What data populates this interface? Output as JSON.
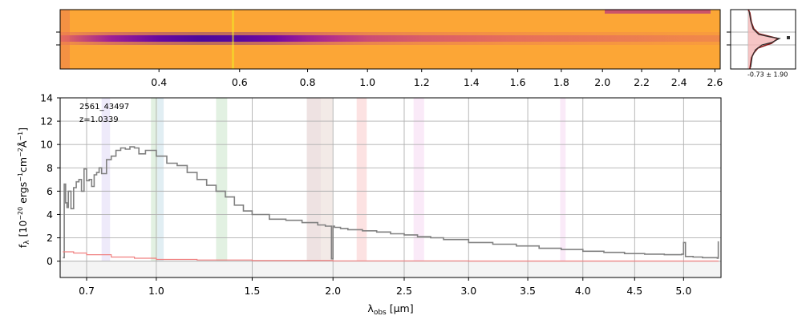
{
  "chart_data": [
    {
      "type": "heatmap",
      "name": "2d-spectrum",
      "colormap": "plasma",
      "xaxis_labels": [
        "0.4",
        "0.6",
        "0.8",
        "1.0",
        "1.2",
        "1.4",
        "1.6",
        "1.8",
        "2.0",
        "2.2",
        "2.4",
        "2.6"
      ],
      "xaxis_values": [
        0.4,
        0.6,
        0.8,
        1.0,
        1.2,
        1.4,
        1.6,
        1.8,
        2.0,
        2.2,
        2.4,
        2.6
      ],
      "xrange": [
        0.21,
        2.63
      ],
      "trace_profile": {
        "x": [
          0.21,
          0.3,
          0.4,
          0.5,
          0.6,
          0.7,
          0.8,
          0.9,
          1.0,
          1.2,
          1.4,
          1.6,
          1.8,
          2.0,
          2.2,
          2.4,
          2.63
        ],
        "intensity": [
          0.35,
          0.7,
          0.9,
          1.0,
          0.95,
          0.85,
          0.7,
          0.6,
          0.5,
          0.42,
          0.38,
          0.33,
          0.3,
          0.27,
          0.24,
          0.2,
          0.18
        ]
      }
    },
    {
      "type": "area",
      "name": "cross-dispersion-profile",
      "annotation": "-0.73 ± 1.90"
    },
    {
      "type": "line",
      "name": "1d-spectrum",
      "title": "",
      "xlabel": "λ_obs [μm]",
      "ylabel": "f_λ [10⁻²⁰ ergs⁻¹cm⁻²Å⁻¹]",
      "xscale": "sqrt",
      "xlim": [
        0.6,
        5.4
      ],
      "ylim": [
        -1.4,
        14
      ],
      "grid": true,
      "xticks": [
        0.7,
        1.0,
        1.5,
        2.0,
        2.5,
        3.0,
        3.5,
        4.0,
        4.5,
        5.0
      ],
      "xtick_labels": [
        "0.7",
        "1.0",
        "1.5",
        "2.0",
        "2.5",
        "3.0",
        "3.5",
        "4.0",
        "4.5",
        "5.0"
      ],
      "yticks": [
        0,
        2,
        4,
        6,
        8,
        10,
        12,
        14
      ],
      "ytick_labels": [
        "0",
        "2",
        "4",
        "6",
        "8",
        "10",
        "12",
        "14"
      ],
      "annotations": [
        "2561_43497",
        "z=1.0339"
      ],
      "series": [
        {
          "role": "flux",
          "color": "#808080",
          "x": [
            0.61,
            0.615,
            0.62,
            0.625,
            0.63,
            0.64,
            0.65,
            0.66,
            0.67,
            0.68,
            0.69,
            0.7,
            0.71,
            0.72,
            0.73,
            0.74,
            0.75,
            0.76,
            0.78,
            0.8,
            0.82,
            0.84,
            0.86,
            0.88,
            0.9,
            0.92,
            0.95,
            1.0,
            1.05,
            1.1,
            1.15,
            1.2,
            1.25,
            1.3,
            1.35,
            1.4,
            1.45,
            1.5,
            1.6,
            1.7,
            1.8,
            1.9,
            1.95,
            1.99,
            2.0,
            2.01,
            2.05,
            2.1,
            2.2,
            2.3,
            2.4,
            2.5,
            2.6,
            2.7,
            2.8,
            3.0,
            3.2,
            3.4,
            3.6,
            3.8,
            4.0,
            4.2,
            4.4,
            4.6,
            4.8,
            4.98,
            5.0,
            5.02,
            5.1,
            5.2,
            5.3,
            5.36,
            5.37
          ],
          "y": [
            0.3,
            6.6,
            5.0,
            4.6,
            6.0,
            4.5,
            6.3,
            6.8,
            7.0,
            6.0,
            7.9,
            6.9,
            7.0,
            6.4,
            7.4,
            7.6,
            8.0,
            7.5,
            8.7,
            9.0,
            9.5,
            9.7,
            9.6,
            9.8,
            9.7,
            9.2,
            9.5,
            9.0,
            8.4,
            8.2,
            7.6,
            7.0,
            6.5,
            6.0,
            5.5,
            4.8,
            4.3,
            4.0,
            3.6,
            3.5,
            3.3,
            3.1,
            3.0,
            0.2,
            3.0,
            2.9,
            2.8,
            2.7,
            2.6,
            2.5,
            2.35,
            2.25,
            2.1,
            2.0,
            1.85,
            1.6,
            1.45,
            1.3,
            1.1,
            1.0,
            0.85,
            0.75,
            0.65,
            0.6,
            0.55,
            0.6,
            1.6,
            0.4,
            0.35,
            0.3,
            0.3,
            0.25,
            1.7
          ]
        },
        {
          "role": "error",
          "color": "#f08080",
          "x": [
            0.61,
            0.65,
            0.7,
            0.8,
            0.9,
            1.0,
            1.2,
            1.5,
            2.0,
            3.0,
            4.0,
            5.0,
            5.37
          ],
          "y": [
            0.8,
            0.7,
            0.55,
            0.35,
            0.25,
            0.15,
            0.1,
            0.05,
            0.02,
            0.01,
            0.01,
            0.01,
            0.02
          ]
        }
      ],
      "emission_bands": [
        {
          "x0": 0.76,
          "x1": 0.795,
          "color": "#c8b8f0"
        },
        {
          "x0": 0.975,
          "x1": 1.005,
          "color": "#9ed09e"
        },
        {
          "x0": 1.005,
          "x1": 1.035,
          "color": "#9cc8d8"
        },
        {
          "x0": 1.3,
          "x1": 1.36,
          "color": "#9ed09e"
        },
        {
          "x0": 1.83,
          "x1": 1.92,
          "color": "#c8a0a0"
        },
        {
          "x0": 1.92,
          "x1": 2.0,
          "color": "#d8b8b0"
        },
        {
          "x0": 2.16,
          "x1": 2.23,
          "color": "#f5a0a0"
        },
        {
          "x0": 2.57,
          "x1": 2.65,
          "color": "#f0b8e8"
        },
        {
          "x0": 3.79,
          "x1": 3.84,
          "color": "#f0b8e8"
        }
      ]
    }
  ]
}
